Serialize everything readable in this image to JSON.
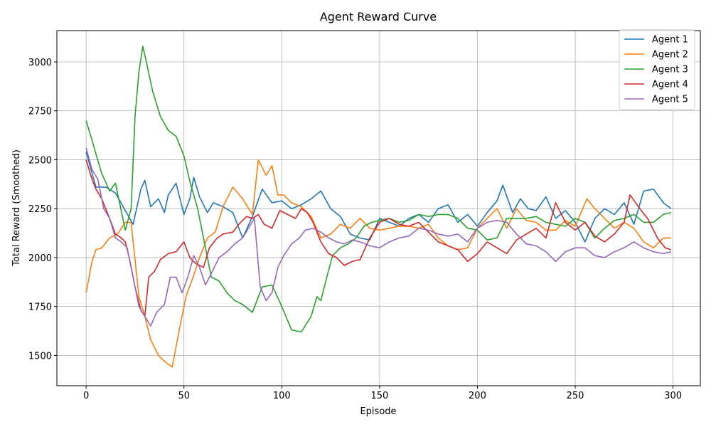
{
  "chart_data": {
    "type": "line",
    "title": "Agent Reward Curve",
    "xlabel": "Episode",
    "ylabel": "Total Reward (Smoothed)",
    "xlim": [
      -14.95,
      313.95
    ],
    "ylim": [
      1345,
      3160
    ],
    "xticks": [
      0,
      50,
      100,
      150,
      200,
      250,
      300
    ],
    "yticks": [
      1500,
      1750,
      2000,
      2250,
      2500,
      2750,
      3000
    ],
    "grid": true,
    "legend_position": "top-right",
    "series": [
      {
        "name": "Agent 1",
        "color": "#1f77b4",
        "x": [
          0,
          5,
          10,
          15,
          20,
          24,
          28,
          30,
          33,
          37,
          40,
          42,
          46,
          50,
          53,
          55,
          58,
          62,
          65,
          70,
          75,
          80,
          85,
          90,
          95,
          100,
          105,
          110,
          115,
          120,
          125,
          130,
          135,
          140,
          145,
          150,
          155,
          160,
          165,
          170,
          175,
          180,
          185,
          190,
          195,
          200,
          205,
          210,
          213,
          218,
          222,
          226,
          230,
          235,
          240,
          245,
          250,
          255,
          260,
          265,
          270,
          275,
          280,
          285,
          290,
          295,
          299
        ],
        "y": [
          2540,
          2360,
          2360,
          2330,
          2240,
          2170,
          2350,
          2395,
          2260,
          2300,
          2230,
          2320,
          2380,
          2220,
          2300,
          2410,
          2310,
          2230,
          2280,
          2260,
          2230,
          2100,
          2210,
          2350,
          2280,
          2290,
          2250,
          2270,
          2300,
          2340,
          2250,
          2210,
          2120,
          2100,
          2090,
          2200,
          2180,
          2160,
          2200,
          2220,
          2180,
          2250,
          2270,
          2180,
          2220,
          2160,
          2230,
          2290,
          2370,
          2230,
          2300,
          2250,
          2240,
          2310,
          2200,
          2240,
          2180,
          2080,
          2200,
          2250,
          2220,
          2280,
          2170,
          2340,
          2350,
          2280,
          2250
        ]
      },
      {
        "name": "Agent 2",
        "color": "#ff7f0e",
        "x": [
          0,
          3,
          5,
          8,
          12,
          16,
          20,
          23,
          27,
          30,
          33,
          37,
          40,
          44,
          48,
          51,
          55,
          58,
          62,
          66,
          70,
          75,
          80,
          85,
          88,
          92,
          95,
          98,
          101,
          105,
          110,
          115,
          120,
          125,
          130,
          135,
          140,
          145,
          150,
          155,
          160,
          165,
          170,
          175,
          180,
          185,
          190,
          195,
          200,
          205,
          210,
          215,
          220,
          225,
          230,
          235,
          240,
          245,
          250,
          256,
          260,
          265,
          270,
          275,
          280,
          285,
          290,
          295,
          299
        ],
        "y": [
          1820,
          1980,
          2040,
          2050,
          2100,
          2120,
          2180,
          2180,
          1800,
          1700,
          1580,
          1500,
          1470,
          1440,
          1650,
          1800,
          1910,
          2000,
          2100,
          2130,
          2260,
          2360,
          2300,
          2220,
          2500,
          2420,
          2470,
          2320,
          2320,
          2280,
          2260,
          2210,
          2100,
          2120,
          2170,
          2150,
          2200,
          2150,
          2140,
          2150,
          2160,
          2160,
          2150,
          2170,
          2100,
          2060,
          2040,
          2050,
          2150,
          2200,
          2250,
          2150,
          2250,
          2190,
          2180,
          2140,
          2140,
          2190,
          2160,
          2300,
          2250,
          2200,
          2150,
          2180,
          2150,
          2080,
          2050,
          2100,
          2100
        ]
      },
      {
        "name": "Agent 3",
        "color": "#2ca02c",
        "x": [
          0,
          3,
          5,
          8,
          12,
          15,
          20,
          23,
          25,
          27,
          29,
          31,
          34,
          38,
          42,
          46,
          50,
          53,
          57,
          60,
          64,
          68,
          72,
          76,
          80,
          85,
          90,
          95,
          100,
          105,
          110,
          115,
          118,
          120,
          123,
          126,
          130,
          134,
          138,
          142,
          146,
          150,
          155,
          160,
          165,
          170,
          175,
          180,
          185,
          190,
          195,
          200,
          205,
          210,
          215,
          220,
          225,
          230,
          235,
          240,
          245,
          250,
          255,
          260,
          265,
          270,
          275,
          280,
          285,
          290,
          295,
          299
        ],
        "y": [
          2700,
          2600,
          2530,
          2430,
          2340,
          2380,
          2140,
          2250,
          2720,
          2950,
          3080,
          2990,
          2850,
          2720,
          2650,
          2620,
          2520,
          2390,
          2250,
          2100,
          1900,
          1880,
          1820,
          1780,
          1760,
          1720,
          1850,
          1860,
          1750,
          1630,
          1620,
          1700,
          1800,
          1780,
          1900,
          2010,
          2050,
          2070,
          2100,
          2160,
          2180,
          2190,
          2200,
          2180,
          2190,
          2220,
          2210,
          2220,
          2220,
          2200,
          2150,
          2140,
          2090,
          2100,
          2200,
          2200,
          2200,
          2210,
          2180,
          2170,
          2160,
          2200,
          2180,
          2100,
          2150,
          2190,
          2200,
          2220,
          2180,
          2180,
          2220,
          2230
        ]
      },
      {
        "name": "Agent 4",
        "color": "#d62728",
        "x": [
          0,
          3,
          5,
          8,
          12,
          15,
          18,
          20,
          22,
          25,
          28,
          30,
          32,
          35,
          38,
          42,
          46,
          50,
          53,
          56,
          60,
          63,
          67,
          70,
          75,
          78,
          82,
          85,
          88,
          91,
          95,
          99,
          103,
          107,
          110,
          113,
          116,
          120,
          124,
          128,
          132,
          136,
          140,
          145,
          150,
          155,
          160,
          165,
          170,
          175,
          180,
          185,
          190,
          195,
          200,
          205,
          210,
          215,
          220,
          225,
          230,
          235,
          240,
          245,
          250,
          255,
          260,
          265,
          270,
          275,
          278,
          283,
          287,
          292,
          296,
          299
        ],
        "y": [
          2500,
          2400,
          2350,
          2300,
          2200,
          2120,
          2100,
          2080,
          2000,
          1850,
          1730,
          1700,
          1900,
          1930,
          1990,
          2020,
          2030,
          2080,
          2000,
          1970,
          1950,
          2050,
          2100,
          2120,
          2130,
          2170,
          2210,
          2200,
          2220,
          2170,
          2150,
          2240,
          2220,
          2200,
          2250,
          2230,
          2180,
          2080,
          2020,
          2000,
          1960,
          1980,
          1990,
          2100,
          2180,
          2200,
          2170,
          2160,
          2180,
          2130,
          2080,
          2060,
          2040,
          1980,
          2020,
          2080,
          2050,
          2020,
          2090,
          2120,
          2150,
          2100,
          2280,
          2180,
          2140,
          2180,
          2110,
          2080,
          2120,
          2180,
          2320,
          2250,
          2200,
          2100,
          2050,
          2040
        ]
      },
      {
        "name": "Agent 5",
        "color": "#9467bd",
        "x": [
          0,
          3,
          6,
          9,
          12,
          15,
          18,
          21,
          24,
          27,
          30,
          33,
          36,
          40,
          43,
          46,
          49,
          52,
          55,
          58,
          61,
          65,
          68,
          72,
          76,
          80,
          83,
          86,
          89,
          92,
          95,
          98,
          101,
          105,
          109,
          112,
          116,
          120,
          124,
          128,
          132,
          136,
          140,
          145,
          150,
          155,
          160,
          165,
          170,
          175,
          180,
          185,
          190,
          195,
          200,
          205,
          210,
          215,
          220,
          225,
          230,
          235,
          240,
          245,
          250,
          255,
          260,
          265,
          270,
          275,
          280,
          285,
          290,
          295,
          299
        ],
        "y": [
          2560,
          2450,
          2400,
          2250,
          2200,
          2100,
          2080,
          2050,
          1900,
          1750,
          1700,
          1650,
          1720,
          1760,
          1900,
          1900,
          1820,
          1900,
          2010,
          1950,
          1860,
          1940,
          2000,
          2030,
          2070,
          2100,
          2150,
          2200,
          1850,
          1780,
          1820,
          1950,
          2010,
          2070,
          2100,
          2140,
          2150,
          2130,
          2100,
          2080,
          2070,
          2090,
          2080,
          2060,
          2050,
          2080,
          2100,
          2110,
          2150,
          2140,
          2120,
          2110,
          2120,
          2080,
          2150,
          2180,
          2190,
          2180,
          2120,
          2070,
          2060,
          2030,
          1980,
          2030,
          2050,
          2050,
          2010,
          2000,
          2030,
          2050,
          2080,
          2050,
          2030,
          2020,
          2030
        ]
      }
    ]
  }
}
